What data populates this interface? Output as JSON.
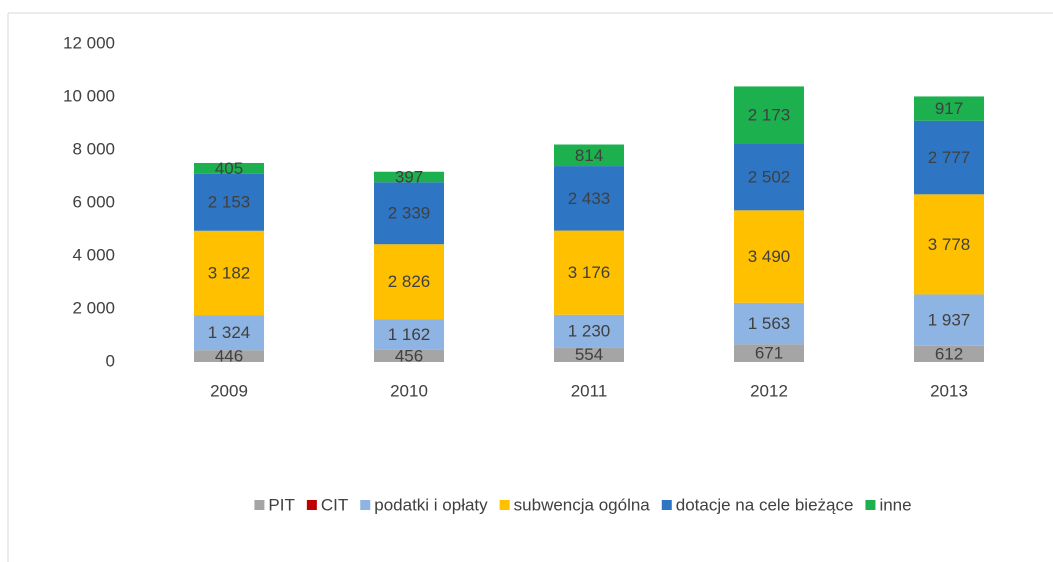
{
  "chart_data": {
    "type": "stacked-bar",
    "categories": [
      "2009",
      "2010",
      "2011",
      "2012",
      "2013"
    ],
    "series": [
      {
        "name": "PIT",
        "color": "#a5a5a5",
        "values": [
          446,
          456,
          554,
          671,
          612
        ]
      },
      {
        "name": "CIT",
        "color": "#c00000",
        "values": [
          0,
          0,
          0,
          0,
          0
        ]
      },
      {
        "name": "podatki i opłaty",
        "color": "#8db4e2",
        "values": [
          1324,
          1162,
          1230,
          1563,
          1937
        ],
        "value_labels": [
          "1 324",
          "1 162",
          "1 230",
          "1 563",
          "1 937"
        ]
      },
      {
        "name": "subwencja ogólna",
        "color": "#ffc000",
        "values": [
          3182,
          2826,
          3176,
          3490,
          3778
        ],
        "value_labels": [
          "3 182",
          "2 826",
          "3 176",
          "3 490",
          "3 778"
        ]
      },
      {
        "name": "dotacje na cele bieżące",
        "color": "#2e75c3",
        "values": [
          2153,
          2339,
          2433,
          2502,
          2777
        ],
        "value_labels": [
          "2 153",
          "2 339",
          "2 433",
          "2 502",
          "2 777"
        ]
      },
      {
        "name": "inne",
        "color": "#1cb04f",
        "values": [
          405,
          397,
          814,
          2173,
          917
        ],
        "value_labels": [
          "405",
          "397",
          "814",
          "2 173",
          "917"
        ]
      }
    ],
    "ylim": [
      0,
      12000
    ],
    "yticks": [
      0,
      {
        "value": 2000,
        "label": "2 000"
      },
      {
        "value": 4000,
        "label": "4 000"
      },
      {
        "value": 6000,
        "label": "6 000"
      },
      {
        "value": 8000,
        "label": "8 000"
      },
      {
        "value": 10000,
        "label": "10 000"
      },
      {
        "value": 12000,
        "label": "12 000"
      }
    ],
    "legend": "bottom"
  }
}
